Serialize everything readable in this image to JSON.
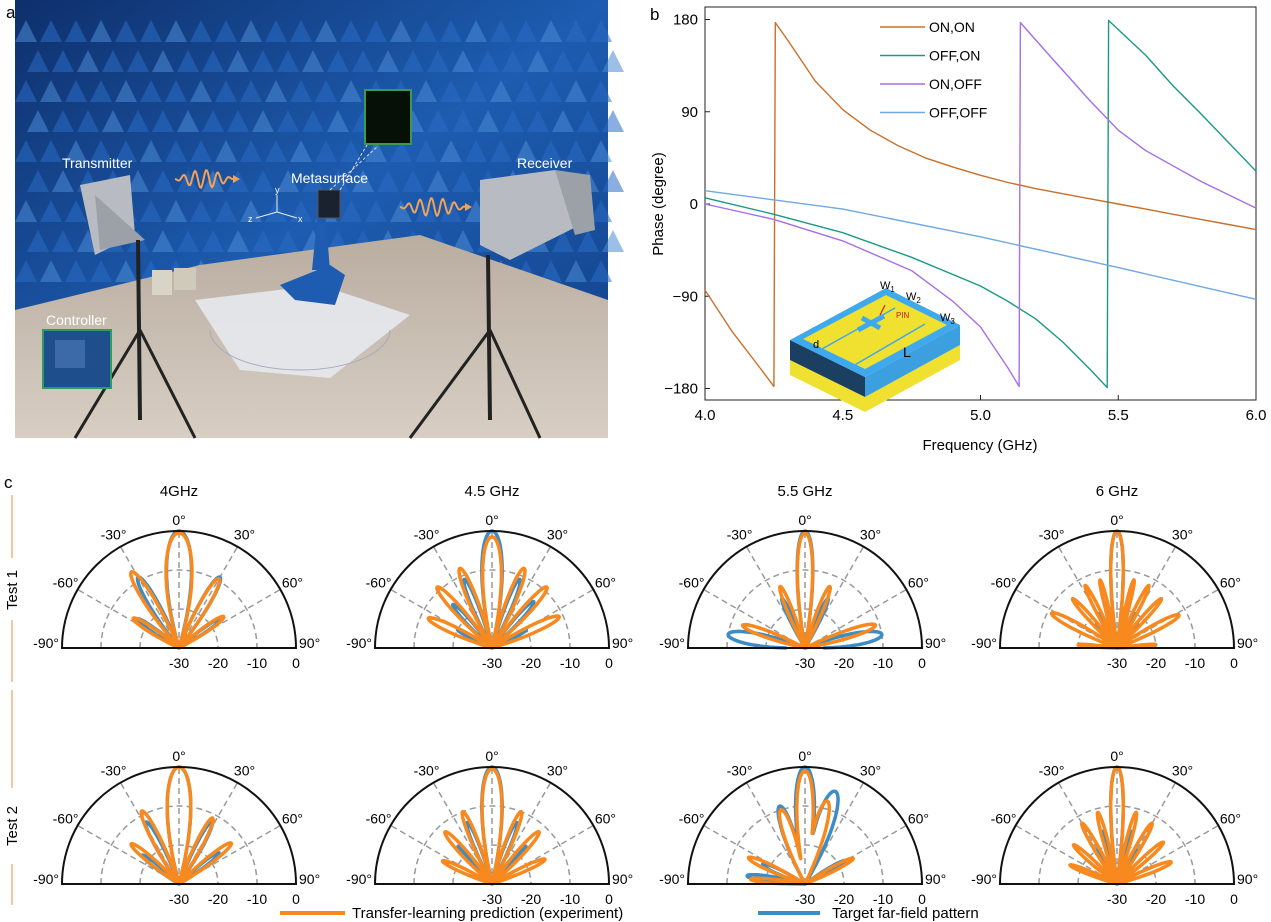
{
  "panel_labels": {
    "a": "a",
    "b": "b",
    "c": "c"
  },
  "photo": {
    "labels": {
      "transmitter": "Transmitter",
      "metasurface": "Metasurface",
      "receiver": "Receiver",
      "controller": "Controller"
    },
    "axes": {
      "x": "x",
      "y": "y",
      "z": "z"
    }
  },
  "chart_data": [
    {
      "type": "line",
      "xlabel": "Frequency (GHz)",
      "ylabel": "Phase (degree)",
      "xlim": [
        4.0,
        6.0
      ],
      "ylim": [
        -180,
        180
      ],
      "xticks": [
        "4.0",
        "4.5",
        "5.0",
        "5.5",
        "6.0"
      ],
      "yticks": [
        "180",
        "90",
        "0",
        "−90",
        "−180"
      ],
      "legend_placement": "top-center",
      "inset_labels": {
        "w1": "W",
        "w1_sub": "1",
        "w2": "W",
        "w2_sub": "2",
        "w3": "W",
        "w3_sub": "3",
        "pin": "PIN",
        "d": "d",
        "l": "L"
      },
      "series": [
        {
          "name": "ON,ON",
          "color": "#c8702a",
          "points": [
            [
              4.0,
              -84
            ],
            [
              4.1,
              -125
            ],
            [
              4.2,
              -160
            ],
            [
              4.25,
              -178
            ],
            [
              4.255,
              177
            ],
            [
              4.3,
              160
            ],
            [
              4.4,
              120
            ],
            [
              4.5,
              92
            ],
            [
              4.6,
              72
            ],
            [
              4.7,
              57
            ],
            [
              4.8,
              45
            ],
            [
              4.9,
              36
            ],
            [
              5.0,
              28
            ],
            [
              5.1,
              21
            ],
            [
              5.2,
              15
            ],
            [
              5.3,
              10
            ],
            [
              5.4,
              5
            ],
            [
              5.5,
              0
            ],
            [
              5.6,
              -5
            ],
            [
              5.7,
              -10
            ],
            [
              5.8,
              -15
            ],
            [
              5.9,
              -20
            ],
            [
              6.0,
              -25
            ]
          ]
        },
        {
          "name": "OFF,ON",
          "color": "#1b9985",
          "points": [
            [
              4.0,
              6
            ],
            [
              4.25,
              -10
            ],
            [
              4.5,
              -28
            ],
            [
              4.75,
              -52
            ],
            [
              5.0,
              -80
            ],
            [
              5.1,
              -95
            ],
            [
              5.2,
              -112
            ],
            [
              5.3,
              -135
            ],
            [
              5.4,
              -162
            ],
            [
              5.46,
              -179
            ],
            [
              5.465,
              179
            ],
            [
              5.6,
              145
            ],
            [
              5.7,
              115
            ],
            [
              5.8,
              88
            ],
            [
              5.9,
              60
            ],
            [
              6.0,
              32
            ]
          ]
        },
        {
          "name": "ON,OFF",
          "color": "#a66ee8",
          "points": [
            [
              4.0,
              0
            ],
            [
              4.25,
              -15
            ],
            [
              4.5,
              -36
            ],
            [
              4.75,
              -65
            ],
            [
              4.9,
              -95
            ],
            [
              5.0,
              -120
            ],
            [
              5.1,
              -160
            ],
            [
              5.14,
              -178
            ],
            [
              5.145,
              177
            ],
            [
              5.25,
              145
            ],
            [
              5.4,
              100
            ],
            [
              5.5,
              72
            ],
            [
              5.6,
              52
            ],
            [
              5.8,
              22
            ],
            [
              6.0,
              -4
            ]
          ]
        },
        {
          "name": "OFF,OFF",
          "color": "#6fa8e2",
          "points": [
            [
              4.0,
              13
            ],
            [
              4.5,
              -5
            ],
            [
              5.0,
              -32
            ],
            [
              5.5,
              -62
            ],
            [
              6.0,
              -93
            ]
          ]
        }
      ]
    },
    {
      "type": "polar",
      "r_ticks": [
        "-30",
        "-20",
        "-10",
        "0"
      ],
      "rlim": [
        -30,
        0
      ],
      "angle_ticks": [
        "-90°",
        "-60°",
        "-30°",
        "0°",
        "30°",
        "60°",
        "90°"
      ],
      "columns": [
        "4GHz",
        "4.5 GHz",
        "5.5 GHz",
        "6 GHz"
      ],
      "rows": [
        "Test 1",
        "Test  2"
      ],
      "legend": [
        {
          "name": "Transfer-learning prediction (experiment)",
          "color": "#f7891f"
        },
        {
          "name": "Target far-field pattern",
          "color": "#3d8cc4"
        }
      ],
      "note": "lobes are [direction_deg, peak_dB, null_halfwidth_deg]",
      "plots": [
        {
          "row": 0,
          "col": 0,
          "target": [
            [
              0,
              0,
              16
            ],
            [
              -30,
              -9,
              10
            ],
            [
              30,
              -9,
              10
            ],
            [
              -55,
              -17,
              10
            ],
            [
              55,
              -17,
              10
            ]
          ],
          "prediction": [
            [
              0,
              -0.5,
              17
            ],
            [
              -32,
              -7,
              10
            ],
            [
              30,
              -9.5,
              10
            ],
            [
              -57,
              -16,
              11
            ],
            [
              55,
              -16,
              11
            ]
          ]
        },
        {
          "row": 0,
          "col": 1,
          "target": [
            [
              0,
              0,
              13
            ],
            [
              -22,
              -11,
              8
            ],
            [
              22,
              -11,
              8
            ],
            [
              -42,
              -15,
              9
            ],
            [
              42,
              -14,
              9
            ],
            [
              -62,
              -20,
              9
            ],
            [
              62,
              -20,
              9
            ]
          ],
          "prediction": [
            [
              0,
              -1.5,
              13
            ],
            [
              -22,
              -8,
              9
            ],
            [
              22,
              -8,
              9
            ],
            [
              -42,
              -9,
              9
            ],
            [
              42,
              -9,
              9
            ],
            [
              -65,
              -12,
              10
            ],
            [
              65,
              -11,
              10
            ]
          ]
        },
        {
          "row": 0,
          "col": 2,
          "target": [
            [
              0,
              0,
              10
            ],
            [
              -25,
              -16,
              8
            ],
            [
              25,
              -16,
              8
            ],
            [
              -80,
              -10,
              14
            ],
            [
              80,
              -10,
              14
            ]
          ],
          "prediction": [
            [
              0,
              -0.5,
              10
            ],
            [
              -22,
              -13,
              8
            ],
            [
              22,
              -13,
              8
            ],
            [
              -70,
              -13,
              10
            ],
            [
              72,
              -11,
              10
            ]
          ]
        },
        {
          "row": 0,
          "col": 3,
          "target": [
            [
              0,
              0,
              8
            ],
            [
              -15,
              -18,
              6
            ],
            [
              15,
              -18,
              6
            ],
            [
              -28,
              -20,
              6
            ],
            [
              28,
              -20,
              6
            ],
            [
              -42,
              -22,
              6
            ],
            [
              42,
              -22,
              6
            ]
          ],
          "prediction": [
            [
              0,
              0,
              8
            ],
            [
              -14,
              -12,
              5
            ],
            [
              14,
              -12,
              5
            ],
            [
              -27,
              -12,
              6
            ],
            [
              27,
              -12,
              6
            ],
            [
              -42,
              -13,
              7
            ],
            [
              42,
              -13,
              7
            ],
            [
              -62,
              -11,
              9
            ],
            [
              62,
              -12,
              9
            ],
            [
              -85,
              -20,
              6
            ],
            [
              85,
              -20,
              6
            ]
          ]
        },
        {
          "row": 1,
          "col": 0,
          "target": [
            [
              0,
              0,
              15
            ],
            [
              -28,
              -12,
              9
            ],
            [
              28,
              -12,
              9
            ],
            [
              -52,
              -18,
              10
            ],
            [
              52,
              -17,
              10
            ]
          ],
          "prediction": [
            [
              0,
              0,
              15
            ],
            [
              -27,
              -9,
              9
            ],
            [
              27,
              -11,
              9
            ],
            [
              -50,
              -14,
              10
            ],
            [
              52,
              -13,
              10
            ]
          ]
        },
        {
          "row": 1,
          "col": 1,
          "target": [
            [
              0,
              0,
              13
            ],
            [
              -22,
              -13,
              8
            ],
            [
              22,
              -13,
              8
            ],
            [
              -42,
              -17,
              8
            ],
            [
              42,
              -17,
              8
            ]
          ],
          "prediction": [
            [
              0,
              -0.5,
              13
            ],
            [
              -22,
              -10,
              8
            ],
            [
              22,
              -10,
              8
            ],
            [
              -42,
              -12,
              9
            ],
            [
              42,
              -12,
              9
            ],
            [
              -65,
              -16,
              9
            ],
            [
              65,
              -15,
              9
            ]
          ]
        },
        {
          "row": 1,
          "col": 2,
          "target": [
            [
              0,
              0,
              12
            ],
            [
              18,
              -5,
              14
            ],
            [
              -18,
              -9,
              12
            ],
            [
              -65,
              -18,
              12
            ],
            [
              -82,
              -15,
              10
            ],
            [
              60,
              -18,
              10
            ]
          ],
          "prediction": [
            [
              0,
              -1,
              11
            ],
            [
              15,
              -8,
              12
            ],
            [
              -18,
              -10,
              12
            ],
            [
              -65,
              -14,
              10
            ],
            [
              62,
              -16,
              9
            ],
            [
              -85,
              -16,
              8
            ]
          ]
        },
        {
          "row": 1,
          "col": 3,
          "target": [
            [
              0,
              0,
              8
            ],
            [
              -15,
              -16,
              6
            ],
            [
              15,
              -16,
              6
            ],
            [
              -30,
              -20,
              6
            ],
            [
              30,
              -20,
              6
            ]
          ],
          "prediction": [
            [
              0,
              0,
              8
            ],
            [
              -15,
              -11,
              6
            ],
            [
              15,
              -11,
              6
            ],
            [
              -30,
              -12,
              7
            ],
            [
              30,
              -12,
              7
            ],
            [
              -48,
              -15,
              8
            ],
            [
              48,
              -14,
              8
            ],
            [
              -68,
              -17,
              8
            ],
            [
              68,
              -15,
              9
            ]
          ]
        }
      ]
    }
  ]
}
